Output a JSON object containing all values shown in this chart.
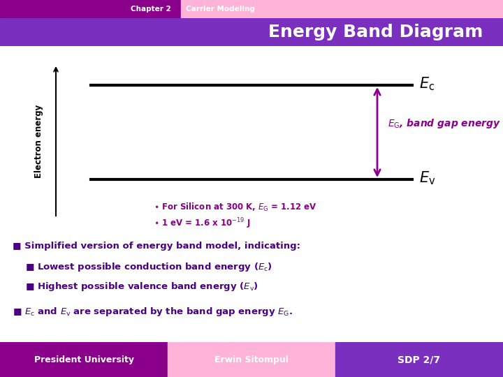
{
  "title": "Energy Band Diagram",
  "header_left": "Chapter 2",
  "header_right": "Carrier Modeling",
  "header_left_bg": "#8B008B",
  "header_right_bg": "#FFB3D9",
  "title_bg": "#7B2FBE",
  "title_color": "#FFFFFF",
  "bg_color": "#FFFFFF",
  "arrow_color": "#8B008B",
  "line_color": "#000000",
  "axis_color": "#000000",
  "label_color": "#000000",
  "eg_label_color": "#8B008B",
  "footer_left": "President University",
  "footer_mid": "Erwin Sitompul",
  "footer_right": "SDP 2/7",
  "footer_left_bg": "#8B008B",
  "footer_mid_bg": "#FFB3D9",
  "footer_right_bg": "#7B2FBE",
  "body_text_color": "#4B0082"
}
